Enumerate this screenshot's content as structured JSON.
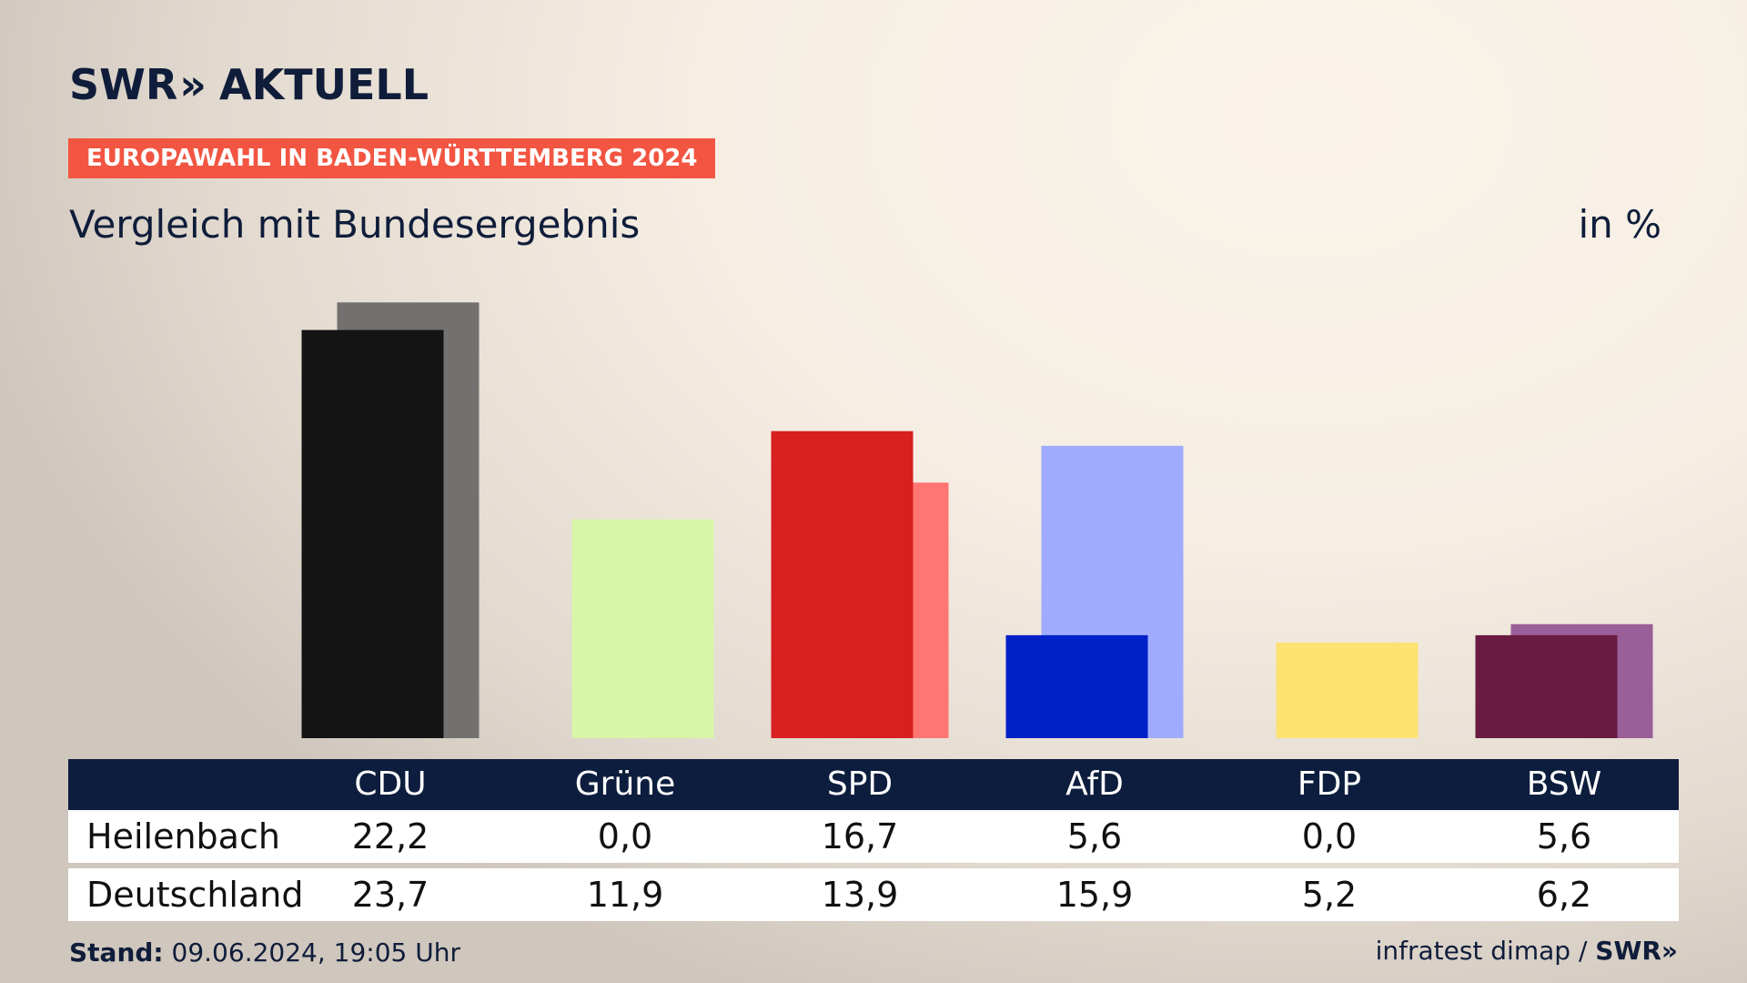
{
  "header": {
    "logo_text": "SWR",
    "logo_chevron": "»",
    "logo_suffix": "AKTUELL",
    "tag": "EUROPAWAHL IN BADEN-WÜRTTEMBERG 2024",
    "subtitle": "Vergleich mit Bundesergebnis",
    "unit": "in %"
  },
  "table": {
    "rows": [
      {
        "label": "Heilenbach",
        "values": [
          "22,2",
          "0,0",
          "16,7",
          "5,6",
          "0,0",
          "5,6"
        ]
      },
      {
        "label": "Deutschland",
        "values": [
          "23,7",
          "11,9",
          "13,9",
          "15,9",
          "5,2",
          "6,2"
        ]
      }
    ]
  },
  "footer": {
    "stand_label": "Stand:",
    "stand_value": "09.06.2024, 19:05 Uhr",
    "source": "infratest dimap /",
    "source_brand": "SWR»"
  },
  "chart_data": {
    "type": "bar",
    "categories": [
      "CDU",
      "Grüne",
      "SPD",
      "AfD",
      "FDP",
      "BSW"
    ],
    "series": [
      {
        "name": "Heilenbach",
        "values": [
          22.2,
          0.0,
          16.7,
          5.6,
          0.0,
          5.6
        ],
        "colors": [
          "#141414",
          "#c9ef8e",
          "#d7201f",
          "#0020c8",
          "#f5d055",
          "#6a1b42"
        ]
      },
      {
        "name": "Deutschland",
        "values": [
          23.7,
          11.9,
          13.9,
          15.9,
          5.2,
          6.2
        ],
        "colors": [
          "#727170",
          "#d8f6a8",
          "#ff7673",
          "#9eabff",
          "#fde272",
          "#9a5e98"
        ]
      }
    ],
    "ylim": [
      0,
      25
    ],
    "grid": false,
    "legend": "table-below"
  }
}
